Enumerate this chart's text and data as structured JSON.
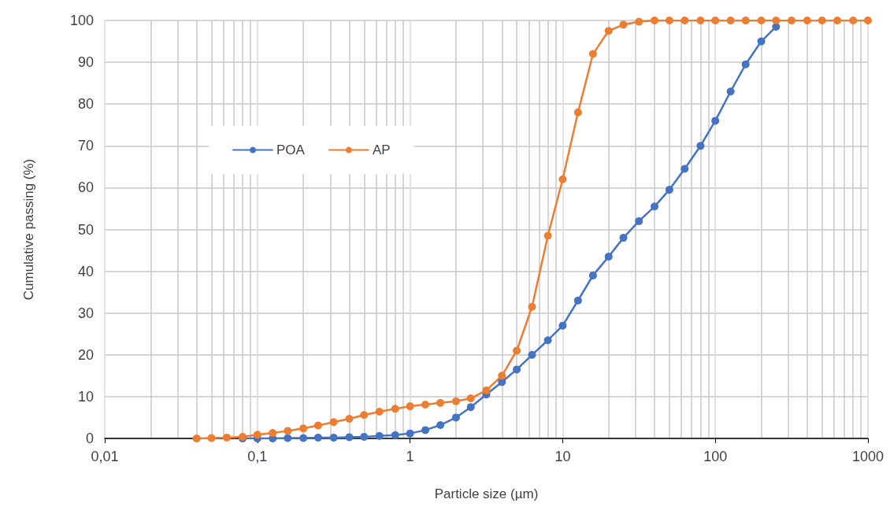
{
  "chart_data": {
    "type": "line",
    "xlabel": "Particle size (µm)",
    "ylabel": "Cumulative passing (%)",
    "x": [
      0.04,
      0.05,
      0.063,
      0.08,
      0.1,
      0.126,
      0.158,
      0.2,
      0.25,
      0.316,
      0.4,
      0.5,
      0.63,
      0.8,
      1,
      1.26,
      1.58,
      2,
      2.5,
      3.16,
      4,
      5,
      6.3,
      8,
      10,
      12.6,
      15.8,
      20,
      25,
      31.6,
      40,
      50,
      63,
      80,
      100,
      126,
      158,
      200,
      250,
      316,
      400,
      500,
      630,
      800,
      1000
    ],
    "series": [
      {
        "name": "POA",
        "color": "#4472c4",
        "values": [
          null,
          null,
          null,
          0,
          0,
          0,
          0.1,
          0.1,
          0.2,
          0.2,
          0.3,
          0.4,
          0.6,
          0.8,
          1.2,
          2,
          3.2,
          5,
          7.5,
          10.5,
          13.5,
          16.5,
          20,
          23.5,
          27,
          33,
          39,
          43.5,
          48,
          52,
          55.5,
          59.5,
          64.5,
          70,
          76,
          83,
          89.5,
          95,
          98.5,
          null,
          null,
          null,
          null,
          null,
          null
        ]
      },
      {
        "name": "AP",
        "color": "#ed7d31",
        "values": [
          0,
          0.1,
          0.2,
          0.4,
          0.9,
          1.3,
          1.8,
          2.4,
          3.1,
          3.9,
          4.7,
          5.6,
          6.4,
          7.1,
          7.7,
          8.1,
          8.5,
          8.9,
          9.6,
          11.5,
          15,
          21,
          31.5,
          48.5,
          62,
          78,
          92,
          97.5,
          99,
          99.7,
          100,
          100,
          100,
          100,
          100,
          100,
          100,
          100,
          100,
          100,
          100,
          100,
          100,
          100,
          100
        ]
      }
    ],
    "xlim": [
      0.01,
      1000
    ],
    "xticks": [
      {
        "value": 0.01,
        "label": "0,01"
      },
      {
        "value": 0.1,
        "label": "0,1"
      },
      1,
      10,
      100,
      1000
    ],
    "ylim": [
      0,
      100
    ],
    "yticks": [
      0,
      10,
      20,
      30,
      40,
      50,
      60,
      70,
      80,
      90,
      100
    ],
    "log": "x",
    "grid": true,
    "legend": "top left",
    "marker": "circle",
    "line_style": "solid"
  }
}
